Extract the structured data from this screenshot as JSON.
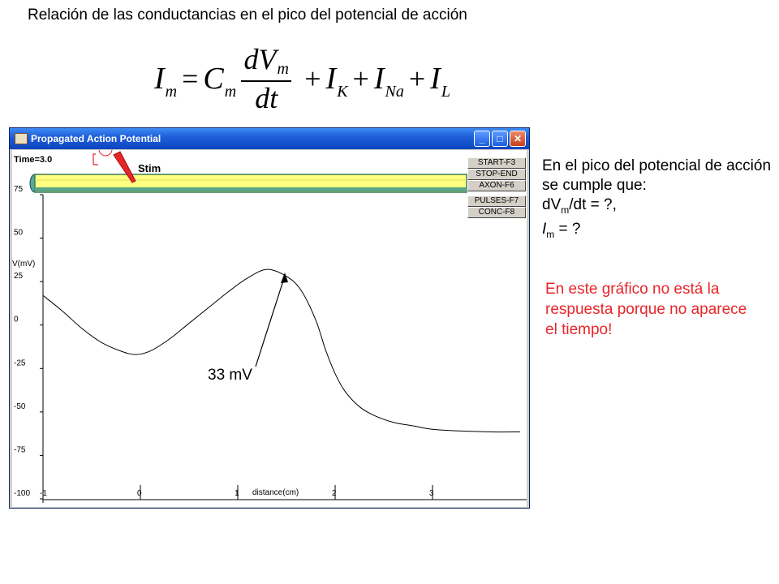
{
  "slide": {
    "title": "Relación de las conductancias en el pico del potencial de acción",
    "equation": {
      "lhs": "I",
      "lhs_sub": "m",
      "eq": "=",
      "c": "C",
      "c_sub": "m",
      "frac_num": "dV",
      "frac_num_sub": "m",
      "frac_den": "dt",
      "plus": "+",
      "ik": "I",
      "ik_sub": "K",
      "ina": "I",
      "ina_sub": "Na",
      "il": "I",
      "il_sub": "L"
    },
    "side_text": {
      "line1": "En el pico del potencial de acción se cumple que:",
      "dv": "dV",
      "dv_sub": "m",
      "dv_rest": "/dt = ?,",
      "im": "I",
      "im_sub": "m",
      "im_rest": " = ?"
    },
    "red_text": "En este gráfico no está la respuesta porque no aparece el tiempo!",
    "annotation": "33 mV"
  },
  "window": {
    "title": "Propagated Action Potential",
    "minimize": "_",
    "maximize": "□",
    "close": "✕",
    "time_label": "Time=3.0",
    "stim_label": "Stim",
    "buttons": [
      "START-F3",
      "STOP-END",
      "AXON-F6",
      "PULSES-F7",
      "CONC-F8"
    ]
  },
  "chart_data": {
    "type": "line",
    "title": "",
    "xlabel": "distance(cm)",
    "ylabel": "V(mV)",
    "xlim": [
      -1,
      4
    ],
    "ylim": [
      -100,
      75
    ],
    "x_ticks": [
      "-1",
      "0",
      "1",
      "2",
      "3"
    ],
    "y_ticks": [
      "75",
      "50",
      "25",
      "0",
      "-25",
      "-50",
      "-75",
      "-100"
    ],
    "series": [
      {
        "x": [
          -1.0,
          -0.8,
          -0.6,
          -0.4,
          -0.2,
          -0.05,
          0.1,
          0.3,
          0.5,
          0.7,
          0.9,
          1.1,
          1.3,
          1.5,
          1.65,
          1.8,
          1.9,
          2.0,
          2.1,
          2.25,
          2.4,
          2.6,
          2.8,
          3.0,
          3.3,
          3.6,
          3.9
        ],
        "y": [
          17,
          8,
          -2,
          -10,
          -15,
          -17,
          -15,
          -8,
          1,
          10,
          19,
          27,
          32,
          28,
          20,
          3,
          -14,
          -28,
          -38,
          -47,
          -52,
          -56,
          -58,
          -60,
          -61,
          -61.5,
          -61.5
        ]
      }
    ],
    "grid": false
  }
}
